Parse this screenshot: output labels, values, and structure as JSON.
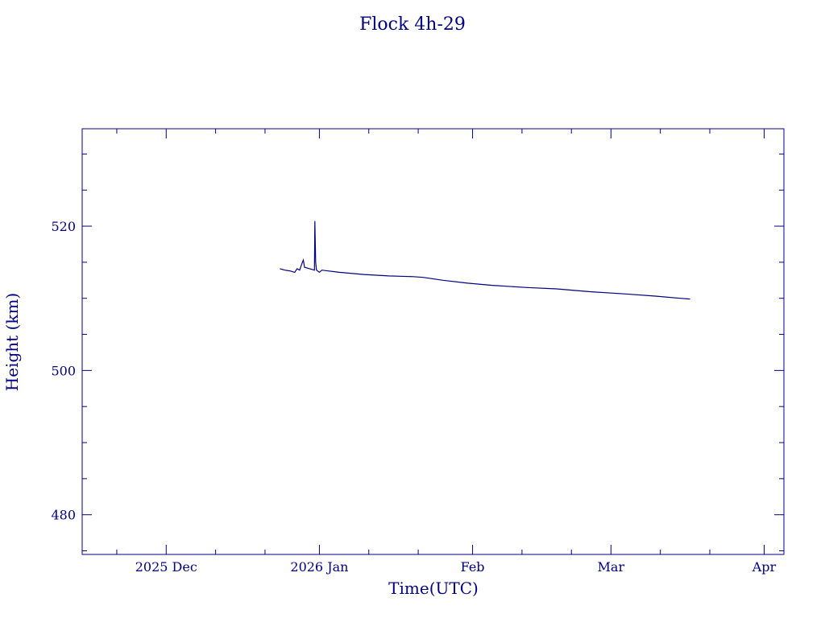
{
  "chart_data": {
    "type": "line",
    "title": "Flock 4h-29",
    "xlabel": "Time(UTC)",
    "ylabel": "Height (km)",
    "color": "#000080",
    "x_axis": {
      "range": [
        "2025-11-14",
        "2026-04-05"
      ],
      "major_ticks": [
        {
          "date": "2025-12-01",
          "label": "2025 Dec"
        },
        {
          "date": "2026-01-01",
          "label": "2026 Jan"
        },
        {
          "date": "2026-02-01",
          "label": "Feb"
        },
        {
          "date": "2026-03-01",
          "label": "Mar"
        },
        {
          "date": "2026-04-01",
          "label": "Apr"
        }
      ]
    },
    "y_axis": {
      "range": [
        474.5,
        533.5
      ],
      "major_ticks": [
        480,
        500,
        520
      ],
      "minor_step": 5
    },
    "grid": false,
    "series": [
      {
        "points": [
          [
            "2025-12-24",
            514.1
          ],
          [
            "2025-12-25",
            513.9
          ],
          [
            "2025-12-26",
            513.8
          ],
          [
            "2025-12-27",
            513.6
          ],
          [
            "2025-12-27T12",
            514.1
          ],
          [
            "2025-12-28",
            513.9
          ],
          [
            "2025-12-28T12",
            514.9
          ],
          [
            "2025-12-28T18",
            515.3
          ],
          [
            "2025-12-29",
            514.3
          ],
          [
            "2025-12-30",
            514.1
          ],
          [
            "2025-12-31",
            513.9
          ],
          [
            "2025-12-31T02",
            520.7
          ],
          [
            "2025-12-31T06",
            515.0
          ],
          [
            "2025-12-31T10",
            513.9
          ],
          [
            "2026-01-01",
            513.6
          ],
          [
            "2026-01-01T12",
            513.9
          ],
          [
            "2026-01-05",
            513.6
          ],
          [
            "2026-01-10",
            513.3
          ],
          [
            "2026-01-15",
            513.1
          ],
          [
            "2026-01-20",
            513.0
          ],
          [
            "2026-01-22",
            512.9
          ],
          [
            "2026-01-26",
            512.5
          ],
          [
            "2026-01-31",
            512.1
          ],
          [
            "2026-02-05",
            511.8
          ],
          [
            "2026-02-12",
            511.5
          ],
          [
            "2026-02-18",
            511.3
          ],
          [
            "2026-02-25",
            510.9
          ],
          [
            "2026-03-04",
            510.6
          ],
          [
            "2026-03-10",
            510.3
          ],
          [
            "2026-03-15",
            510.0
          ],
          [
            "2026-03-17",
            509.9
          ]
        ]
      }
    ]
  }
}
